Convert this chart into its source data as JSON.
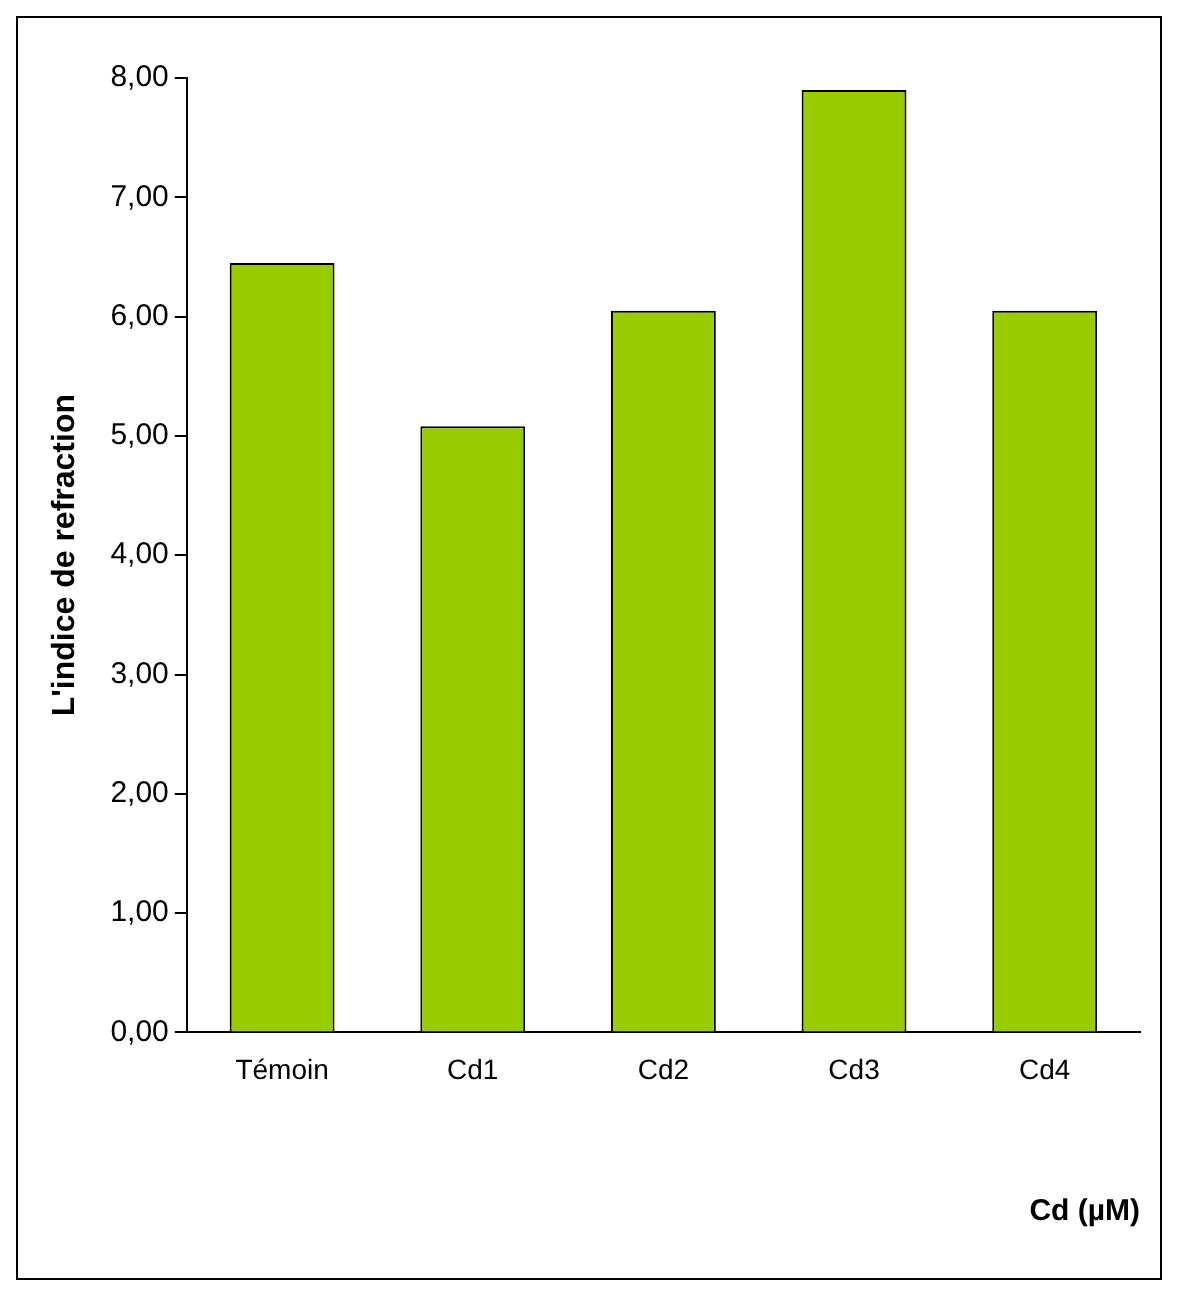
{
  "chart_data": {
    "type": "bar",
    "xlabel": "Cd (µM)",
    "ylabel": "L'indice de refraction",
    "categories": [
      "Témoin",
      "Cd1",
      "Cd2",
      "Cd3",
      "Cd4"
    ],
    "values": [
      6.45,
      5.08,
      6.05,
      7.9,
      6.05
    ],
    "color": "#99cc00",
    "ylim": [
      0,
      8
    ],
    "yticks": [
      {
        "value": 0,
        "label": "0,00"
      },
      {
        "value": 1,
        "label": "1,00"
      },
      {
        "value": 2,
        "label": "2,00"
      },
      {
        "value": 3,
        "label": "3,00"
      },
      {
        "value": 4,
        "label": "4,00"
      },
      {
        "value": 5,
        "label": "5,00"
      },
      {
        "value": 6,
        "label": "6,00"
      },
      {
        "value": 7,
        "label": "7,00"
      },
      {
        "value": 8,
        "label": "8,00"
      }
    ],
    "grid": false,
    "legend": false
  }
}
